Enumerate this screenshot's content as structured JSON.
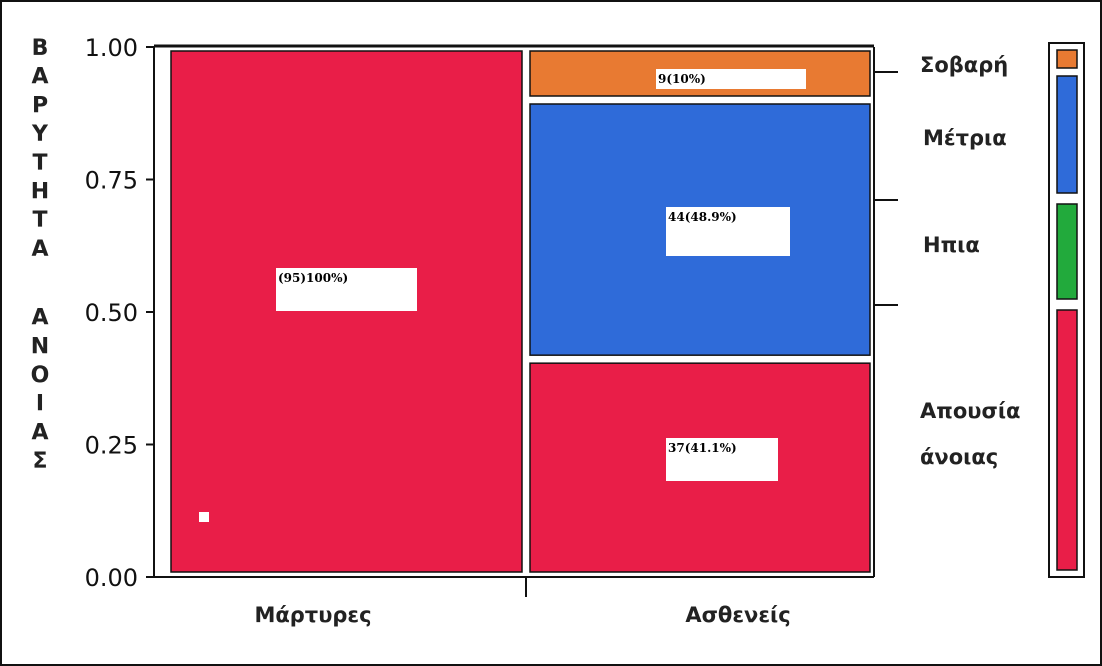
{
  "chart_data": {
    "type": "mosaic",
    "ylabel": "ΒΑΡΥΤΗΤΑ ΑΝΟΙΑΣ",
    "ylim": [
      0,
      1
    ],
    "yticks": [
      "0.00",
      "0.25",
      "0.50",
      "0.75",
      "1.00"
    ],
    "categories": [
      "Μάρτυρες",
      "Ασθενείς"
    ],
    "category_counts": [
      95,
      90
    ],
    "series": [
      {
        "name": "Απουσία άνοιας",
        "color": "#E91E48",
        "values": [
          1.0,
          0.411
        ],
        "labels": [
          "(95)100%)",
          "37(41.1%)"
        ]
      },
      {
        "name": "Ήπια",
        "color": "#22AA3C",
        "values": [
          0.0,
          0.0
        ],
        "labels": [
          "",
          ""
        ]
      },
      {
        "name": "Μέτρια",
        "color": "#2F6BD9",
        "values": [
          0.0,
          0.489
        ],
        "labels": [
          "",
          "44(48.9%)"
        ]
      },
      {
        "name": "Σοβαρή",
        "color": "#E87A32",
        "values": [
          0.0,
          0.1
        ],
        "labels": [
          "",
          "9(10%)"
        ]
      }
    ],
    "legend": {
      "items": [
        "Σοβαρή",
        "Μέτρια",
        "Ηπια",
        "Απουσία άνοιας"
      ],
      "placement": "right"
    }
  }
}
